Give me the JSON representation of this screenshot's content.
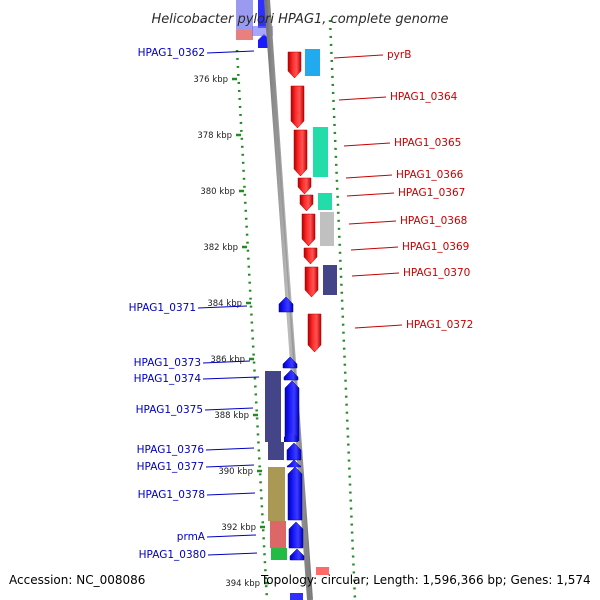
{
  "title": "Helicobacter pylori HPAG1, complete genome",
  "accession_text": "Accession: NC_008086",
  "topology_text": "Topology: circular; Length: 1,596,366 bp; Genes: 1,574",
  "colors": {
    "forward_gene": "#ff0000",
    "reverse_gene": "#0000ff",
    "forward_label": "#c80000",
    "reverse_label": "#0000c0",
    "backbone": "#999999",
    "tick_dots": "#228b22"
  },
  "ruler": {
    "unit": "kbp",
    "ticks": [
      "376 kbp",
      "378 kbp",
      "380 kbp",
      "382 kbp",
      "384 kbp",
      "386 kbp",
      "388 kbp",
      "390 kbp",
      "392 kbp",
      "394 kbp"
    ]
  },
  "forward_genes": [
    {
      "label": "pyrB",
      "cog_color": "#22aaee"
    },
    {
      "label": "HPAG1_0364",
      "cog_color": null
    },
    {
      "label": "HPAG1_0365",
      "cog_color": "#22ddaa"
    },
    {
      "label": "HPAG1_0366",
      "cog_color": null
    },
    {
      "label": "HPAG1_0367",
      "cog_color": "#22ddaa"
    },
    {
      "label": "HPAG1_0368",
      "cog_color": "#c0c0c0"
    },
    {
      "label": "HPAG1_0369",
      "cog_color": null
    },
    {
      "label": "HPAG1_0370",
      "cog_color": "#444488"
    },
    {
      "label": "HPAG1_0372",
      "cog_color": null
    }
  ],
  "reverse_genes": [
    {
      "label": "HPAG1_0362",
      "cog_color": null
    },
    {
      "label": "HPAG1_0371",
      "cog_color": null
    },
    {
      "label": "HPAG1_0373",
      "cog_color": null
    },
    {
      "label": "HPAG1_0374",
      "cog_color": "#444488"
    },
    {
      "label": "HPAG1_0375",
      "cog_color": "#444488"
    },
    {
      "label": "HPAG1_0376",
      "cog_color": "#444488"
    },
    {
      "label": "HPAG1_0377",
      "cog_color": null
    },
    {
      "label": "HPAG1_0378",
      "cog_color": "#aa9955"
    },
    {
      "label": "prmA",
      "cog_color": "#dd6666"
    },
    {
      "label": "HPAG1_0380",
      "cog_color": "#22bb44"
    }
  ]
}
